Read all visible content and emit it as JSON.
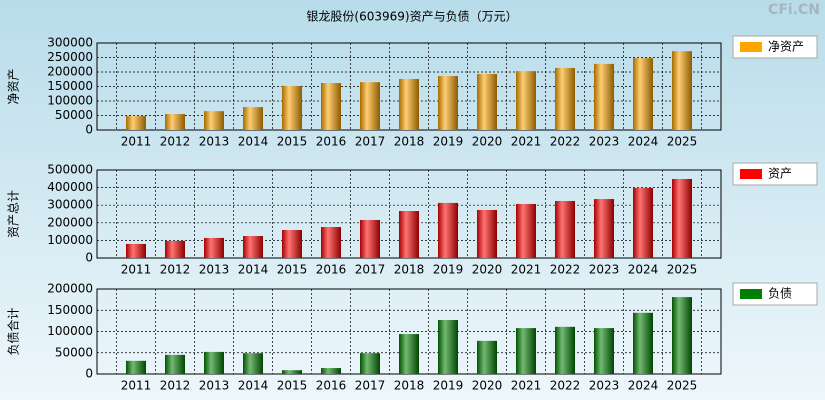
{
  "watermark": "CFi.CN",
  "chart_data": [
    {
      "type": "bar",
      "title": "银龙股份(603969)资产与负债（万元）",
      "ylabel": "净资产",
      "categories": [
        "2011",
        "2012",
        "2013",
        "2014",
        "2015",
        "2016",
        "2017",
        "2018",
        "2019",
        "2020",
        "2021",
        "2022",
        "2023",
        "2024",
        "2025"
      ],
      "series": [
        {
          "name": "净资产",
          "color": "#ffa500",
          "values": [
            48000,
            55000,
            65000,
            79000,
            152000,
            162000,
            165000,
            176000,
            186000,
            193000,
            203000,
            214000,
            228000,
            248000,
            272000
          ]
        }
      ],
      "ylim": [
        0,
        300000
      ],
      "yticks": [
        0,
        50000,
        100000,
        150000,
        200000,
        250000,
        300000
      ],
      "grid": true
    },
    {
      "type": "bar",
      "ylabel": "资产总计",
      "categories": [
        "2011",
        "2012",
        "2013",
        "2014",
        "2015",
        "2016",
        "2017",
        "2018",
        "2019",
        "2020",
        "2021",
        "2022",
        "2023",
        "2024",
        "2025"
      ],
      "series": [
        {
          "name": "资产",
          "color": "#ff0000",
          "values": [
            80000,
            97000,
            114000,
            125000,
            159000,
            176000,
            216000,
            267000,
            313000,
            273000,
            307000,
            324000,
            335000,
            398000,
            449000
          ]
        }
      ],
      "ylim": [
        0,
        500000
      ],
      "yticks": [
        0,
        100000,
        200000,
        300000,
        400000,
        500000
      ],
      "grid": true
    },
    {
      "type": "bar",
      "ylabel": "负债合计",
      "categories": [
        "2011",
        "2012",
        "2013",
        "2014",
        "2015",
        "2016",
        "2017",
        "2018",
        "2019",
        "2020",
        "2021",
        "2022",
        "2023",
        "2024",
        "2025"
      ],
      "series": [
        {
          "name": "负债",
          "color": "#008000",
          "values": [
            31000,
            45000,
            52000,
            49000,
            9000,
            14000,
            49000,
            94000,
            127000,
            78000,
            108000,
            111000,
            108000,
            144000,
            181000
          ]
        }
      ],
      "ylim": [
        0,
        200000
      ],
      "yticks": [
        0,
        50000,
        100000,
        150000,
        200000
      ],
      "grid": true
    }
  ]
}
